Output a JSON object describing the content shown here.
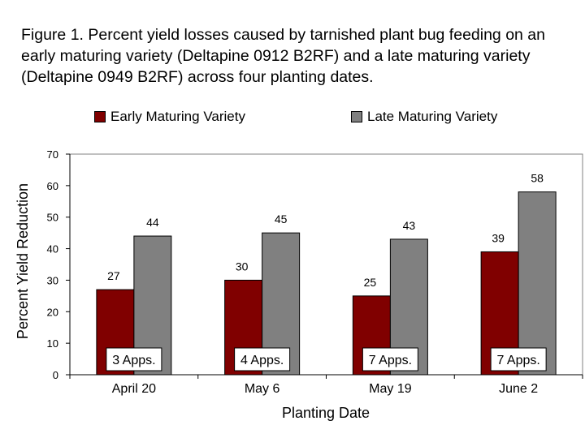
{
  "chart_data": {
    "type": "bar",
    "title": "Figure 1. Percent yield losses caused by tarnished plant bug feeding on an early maturing variety (Deltapine 0912 B2RF) and a late maturing variety (Deltapine 0949 B2RF) across four planting dates.",
    "xlabel": "Planting Date",
    "ylabel": "Percent Yield Reduction",
    "categories": [
      "April 20",
      "May 6",
      "May 19",
      "June 2"
    ],
    "series": [
      {
        "name": "Early Maturing Variety",
        "color": "#800000",
        "values": [
          27,
          30,
          25,
          39
        ]
      },
      {
        "name": "Late Maturing Variety",
        "color": "#808080",
        "values": [
          44,
          45,
          43,
          58
        ]
      }
    ],
    "ylim": [
      0,
      70
    ],
    "yticks": [
      0,
      10,
      20,
      30,
      40,
      50,
      60,
      70
    ],
    "annotations": [
      "3 Apps.",
      "4 Apps.",
      "7 Apps.",
      "7 Apps."
    ],
    "legend_position": "top",
    "grid": false
  }
}
